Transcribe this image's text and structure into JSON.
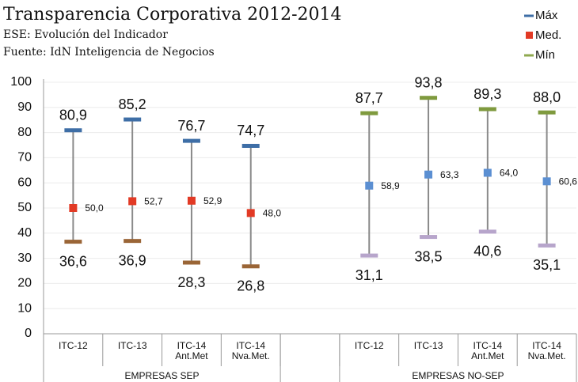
{
  "chart_data": {
    "type": "high-low-mean",
    "title": "Transparencia Corporativa 2012-2014",
    "subtitle": [
      "ESE: Evolución del Indicador",
      "Fuente: IdN Inteligencia de Negocios"
    ],
    "categories": [
      [
        "ITC-12"
      ],
      [
        "ITC-13"
      ],
      [
        "ITC-14",
        "Ant.Met"
      ],
      [
        "ITC-14",
        "Nva.Met."
      ],
      null,
      [
        "ITC-12"
      ],
      [
        "ITC-13"
      ],
      [
        "ITC-14",
        "Ant.Met"
      ],
      [
        "ITC-14",
        "Nva.Met."
      ]
    ],
    "groups": [
      "EMPRESAS SEP",
      "EMPRESAS NO-SEP"
    ],
    "series": [
      {
        "name": "Máx",
        "color": "#3e6ea6",
        "colors": [
          "#3e6ea6",
          "#3e6ea6",
          "#3e6ea6",
          "#3e6ea6",
          null,
          "#7f9a3e",
          "#7f9a3e",
          "#7f9a3e",
          "#7f9a3e"
        ],
        "values": [
          80.9,
          85.2,
          76.7,
          74.7,
          null,
          87.7,
          93.8,
          89.3,
          88.0
        ],
        "value_labels": [
          "80,9",
          "85,2",
          "76,7",
          "74,7",
          null,
          "87,7",
          "93,8",
          "89,3",
          "88,0"
        ]
      },
      {
        "name": "Med.",
        "color": "#e23a25",
        "colors": [
          "#e23a25",
          "#e23a25",
          "#e23a25",
          "#e23a25",
          null,
          "#5b8fd2",
          "#5b8fd2",
          "#5b8fd2",
          "#5b8fd2"
        ],
        "values": [
          50.0,
          52.7,
          52.9,
          48.0,
          null,
          58.9,
          63.3,
          64.0,
          60.6
        ],
        "value_labels": [
          "50,0",
          "52,7",
          "52,9",
          "48,0",
          null,
          "58,9",
          "63,3",
          "64,0",
          "60,6"
        ]
      },
      {
        "name": "Mín",
        "color": "#8fa94f",
        "colors": [
          "#9a6536",
          "#9a6536",
          "#9a6536",
          "#9a6536",
          null,
          "#b7a5cb",
          "#b7a5cb",
          "#b7a5cb",
          "#b7a5cb"
        ],
        "values": [
          36.6,
          36.9,
          28.3,
          26.8,
          null,
          31.1,
          38.5,
          40.6,
          35.1
        ],
        "value_labels": [
          "36,6",
          "36,9",
          "28,3",
          "26,8",
          null,
          "31,1",
          "38,5",
          "40,6",
          "35,1"
        ]
      }
    ],
    "ylim": [
      0,
      100
    ],
    "yticks": [
      0,
      10,
      20,
      30,
      40,
      50,
      60,
      70,
      80,
      90,
      100
    ],
    "grid": true,
    "legend": "top-right"
  }
}
